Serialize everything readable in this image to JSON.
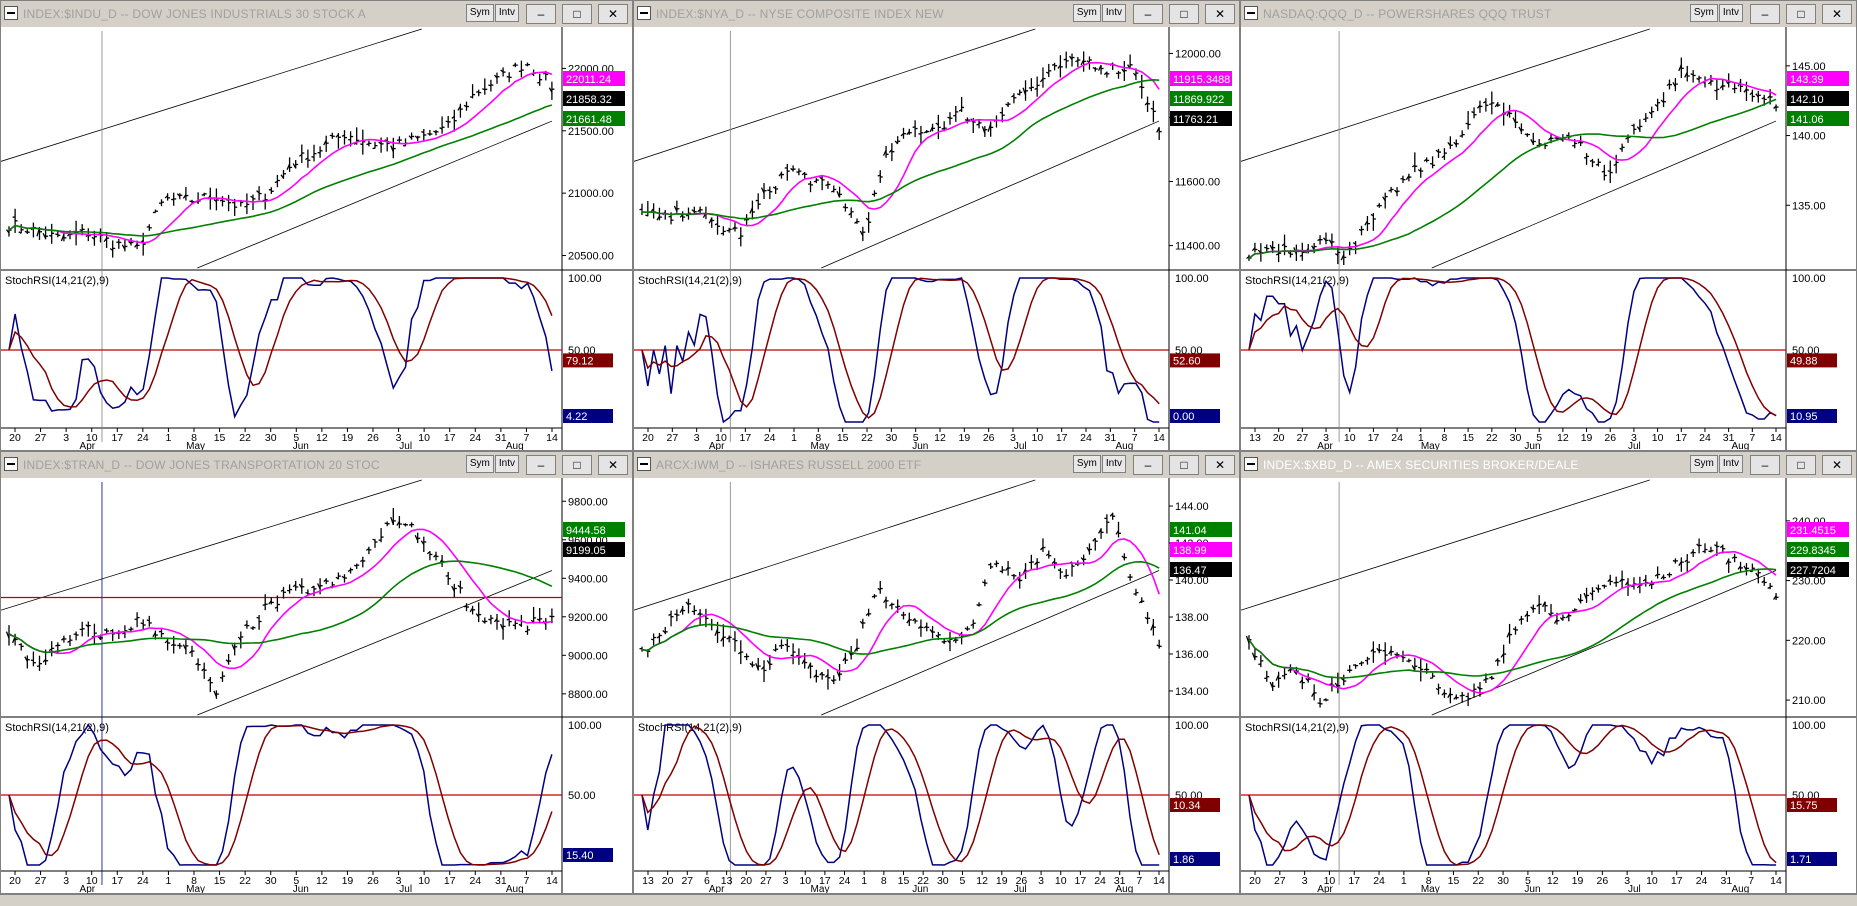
{
  "windows": [
    {
      "title": "INDEX:$INDU_D -- DOW JONES INDUSTRIALS 30 STOCK A",
      "active": false,
      "dates": [
        "20",
        "27",
        "3",
        "10",
        "17",
        "24",
        "1",
        "8",
        "15",
        "22",
        "30",
        "5",
        "12",
        "19",
        "26",
        "3",
        "10",
        "17",
        "24",
        "31",
        "7",
        "14"
      ],
      "months": [
        "Apr",
        "May",
        "Jun",
        "Jul",
        "Aug"
      ],
      "price_ticks": [
        "22000.00",
        "21500.00",
        "21000.00",
        "20500.00"
      ],
      "price_tick_values": [
        22000,
        21500,
        21000,
        20500
      ],
      "price_range": [
        20400,
        22300
      ],
      "badges": [
        {
          "value": "22011.24",
          "bg": "#ff00ff",
          "fg": "#ffffff"
        },
        {
          "value": "21858.32",
          "bg": "#000000",
          "fg": "#ffffff"
        },
        {
          "value": "21661.48",
          "bg": "#008000",
          "fg": "#ffffff"
        }
      ],
      "stoch_label": "StochRSI(14,21(2),9)",
      "stoch_ticks": [
        "100.00",
        "50.00"
      ],
      "stoch_badges": [
        {
          "value": "79.12",
          "bg": "#800000",
          "fg": "#ffffff"
        },
        {
          "value": "4.22",
          "bg": "#000080",
          "fg": "#ffffff"
        }
      ]
    },
    {
      "title": "INDEX:$NYA_D -- NYSE COMPOSITE INDEX NEW",
      "active": false,
      "dates": [
        "20",
        "27",
        "3",
        "10",
        "17",
        "24",
        "1",
        "8",
        "15",
        "22",
        "30",
        "5",
        "12",
        "19",
        "26",
        "3",
        "10",
        "17",
        "24",
        "31",
        "7",
        "14"
      ],
      "months": [
        "Apr",
        "May",
        "Jun",
        "Jul",
        "Aug"
      ],
      "price_ticks": [
        "12000.00",
        "11800.00",
        "11600.00",
        "11400.00"
      ],
      "price_tick_values": [
        12000,
        11800,
        11600,
        11400
      ],
      "price_range": [
        11330,
        12070
      ],
      "badges": [
        {
          "value": "11915.3488",
          "bg": "#ff00ff",
          "fg": "#ffffff"
        },
        {
          "value": "11869.922",
          "bg": "#008000",
          "fg": "#ffffff"
        },
        {
          "value": "11763.21",
          "bg": "#000000",
          "fg": "#ffffff"
        }
      ],
      "stoch_label": "StochRSI(14,21(2),9)",
      "stoch_ticks": [
        "100.00",
        "50.00"
      ],
      "stoch_badges": [
        {
          "value": "52.60",
          "bg": "#800000",
          "fg": "#ffffff"
        },
        {
          "value": "0.00",
          "bg": "#000080",
          "fg": "#ffffff"
        }
      ]
    },
    {
      "title": "NASDAQ:QQQ_D -- POWERSHARES QQQ TRUST",
      "active": false,
      "dates": [
        "13",
        "20",
        "27",
        "3",
        "10",
        "17",
        "24",
        "1",
        "8",
        "15",
        "22",
        "30",
        "5",
        "12",
        "19",
        "26",
        "3",
        "10",
        "17",
        "24",
        "31",
        "7",
        "14"
      ],
      "months": [
        "Apr",
        "May",
        "Jun",
        "Jul",
        "Aug"
      ],
      "price_ticks": [
        "145.00",
        "140.00",
        "135.00"
      ],
      "price_tick_values": [
        145,
        140,
        135
      ],
      "price_range": [
        130.5,
        147.5
      ],
      "badges": [
        {
          "value": "143.39",
          "bg": "#ff00ff",
          "fg": "#ffffff"
        },
        {
          "value": "142.10",
          "bg": "#000000",
          "fg": "#ffffff"
        },
        {
          "value": "141.06",
          "bg": "#008000",
          "fg": "#ffffff"
        }
      ],
      "stoch_label": "StochRSI(14,21(2),9)",
      "stoch_ticks": [
        "100.00",
        "50.00"
      ],
      "stoch_badges": [
        {
          "value": "49.88",
          "bg": "#800000",
          "fg": "#ffffff"
        },
        {
          "value": "10.95",
          "bg": "#000080",
          "fg": "#ffffff"
        }
      ]
    },
    {
      "title": "INDEX:$TRAN_D -- DOW JONES TRANSPORTATION 20 STOC",
      "active": false,
      "dates": [
        "20",
        "27",
        "3",
        "10",
        "17",
        "24",
        "1",
        "8",
        "15",
        "22",
        "30",
        "5",
        "12",
        "19",
        "26",
        "3",
        "10",
        "17",
        "24",
        "31",
        "7",
        "14"
      ],
      "months": [
        "Apr",
        "May",
        "Jun",
        "Jul",
        "Aug"
      ],
      "price_ticks": [
        "9800.00",
        "9600.00",
        "9400.00",
        "9200.00",
        "9000.00",
        "8800.00"
      ],
      "price_tick_values": [
        9800,
        9600,
        9400,
        9200,
        9000,
        8800
      ],
      "price_range": [
        8690,
        9900
      ],
      "badges": [
        {
          "value": "9444.58",
          "bg": "#008000",
          "fg": "#ffffff"
        },
        {
          "value": "9199.05",
          "bg": "#000000",
          "fg": "#ffffff"
        }
      ],
      "stoch_label": "StochRSI(14,21(2),9)",
      "stoch_ticks": [
        "100.00",
        "50.00"
      ],
      "stoch_badges": [
        {
          "value": "15.40",
          "bg": "#000080",
          "fg": "#ffffff"
        }
      ]
    },
    {
      "title": "ARCX:IWM_D -- ISHARES RUSSELL 2000 ETF",
      "active": false,
      "dates": [
        "13",
        "20",
        "27",
        "6",
        "13",
        "20",
        "27",
        "3",
        "10",
        "17",
        "24",
        "1",
        "8",
        "15",
        "22",
        "30",
        "5",
        "12",
        "19",
        "26",
        "3",
        "10",
        "17",
        "24",
        "31",
        "7",
        "14"
      ],
      "months": [
        "Apr",
        "May",
        "Jun",
        "Jul",
        "Aug"
      ],
      "price_ticks": [
        "144.00",
        "142.00",
        "140.00",
        "138.00",
        "136.00",
        "134.00"
      ],
      "price_tick_values": [
        144,
        142,
        140,
        138,
        136,
        134
      ],
      "price_range": [
        132.7,
        145.3
      ],
      "badges": [
        {
          "value": "141.04",
          "bg": "#008000",
          "fg": "#ffffff"
        },
        {
          "value": "138.99",
          "bg": "#ff00ff",
          "fg": "#ffffff"
        },
        {
          "value": "136.47",
          "bg": "#000000",
          "fg": "#ffffff"
        }
      ],
      "stoch_label": "StochRSI(14,21(2),9)",
      "stoch_ticks": [
        "100.00",
        "50.00"
      ],
      "stoch_badges": [
        {
          "value": "10.34",
          "bg": "#800000",
          "fg": "#ffffff"
        },
        {
          "value": "1.86",
          "bg": "#000080",
          "fg": "#ffffff"
        }
      ]
    },
    {
      "title": "INDEX:$XBD_D -- AMEX SECURITIES BROKER/DEALE",
      "active": true,
      "dates": [
        "20",
        "27",
        "3",
        "10",
        "17",
        "24",
        "1",
        "8",
        "15",
        "22",
        "30",
        "5",
        "12",
        "19",
        "26",
        "3",
        "10",
        "17",
        "24",
        "31",
        "7",
        "14"
      ],
      "months": [
        "Apr",
        "May",
        "Jun",
        "Jul",
        "Aug"
      ],
      "price_ticks": [
        "240.00",
        "230.00",
        "220.00",
        "210.00"
      ],
      "price_tick_values": [
        240,
        230,
        220,
        210
      ],
      "price_range": [
        207.5,
        246.5
      ],
      "badges": [
        {
          "value": "231.4515",
          "bg": "#ff00ff",
          "fg": "#ffffff"
        },
        {
          "value": "229.8345",
          "bg": "#008000",
          "fg": "#ffffff"
        },
        {
          "value": "227.7204",
          "bg": "#000000",
          "fg": "#ffffff"
        }
      ],
      "stoch_label": "StochRSI(14,21(2),9)",
      "stoch_ticks": [
        "100.00",
        "50.00"
      ],
      "stoch_badges": [
        {
          "value": "15.75",
          "bg": "#800000",
          "fg": "#ffffff"
        },
        {
          "value": "1.71",
          "bg": "#000080",
          "fg": "#ffffff"
        }
      ]
    }
  ],
  "buttons": {
    "sym": "Sym",
    "intv": "Intv"
  },
  "colors": {
    "fast_ma": "#ff00ff",
    "slow_ma": "#008000",
    "stoch_k": "#000080",
    "stoch_d": "#800000",
    "midline": "#c00000"
  },
  "chart_data": [
    {
      "type": "line",
      "title": "INDEX:$INDU_D -- DOW JONES INDUSTRIALS 30 STOCK A",
      "ylim": [
        20400,
        22300
      ],
      "series": [
        {
          "values": [
            20750,
            20700,
            20630,
            20690,
            20600,
            20550,
            20950,
            20940,
            20980,
            20880,
            21000,
            21250,
            21350,
            21480,
            21400,
            21380,
            21450,
            21530,
            21800,
            21920,
            22050,
            21860
          ]
        }
      ]
    },
    {
      "type": "line",
      "title": "INDEX:$NYA_D -- NYSE COMPOSITE INDEX NEW",
      "ylim": [
        11330,
        12070
      ],
      "series": [
        {
          "values": [
            11500,
            11480,
            11520,
            11460,
            11440,
            11560,
            11640,
            11600,
            11560,
            11440,
            11690,
            11760,
            11770,
            11820,
            11760,
            11860,
            11900,
            11960,
            11980,
            11950,
            11960,
            11763
          ]
        }
      ]
    },
    {
      "type": "line",
      "title": "NASDAQ:QQQ_D -- POWERSHARES QQQ TRUST",
      "ylim": [
        130.5,
        147.5
      ],
      "series": [
        {
          "values": [
            131.5,
            132.0,
            131.8,
            132.5,
            131.6,
            133.5,
            136.0,
            137.5,
            138.5,
            140.5,
            142.5,
            141.0,
            139.5,
            140.0,
            139.0,
            137.0,
            140.5,
            142.0,
            144.5,
            144.0,
            143.5,
            143.2,
            142.1
          ]
        }
      ]
    },
    {
      "type": "line",
      "title": "INDEX:$TRAN_D -- DOW JONES TRANSPORTATION 20 STOC",
      "ylim": [
        8690,
        9900
      ],
      "series": [
        {
          "values": [
            9100,
            8950,
            9050,
            9130,
            9100,
            9180,
            9100,
            9020,
            8800,
            9100,
            9250,
            9330,
            9350,
            9400,
            9550,
            9720,
            9600,
            9420,
            9220,
            9170,
            9150,
            9199
          ]
        }
      ]
    },
    {
      "type": "line",
      "title": "ARCX:IWM_D -- ISHARES RUSSELL 2000 ETF",
      "ylim": [
        132.7,
        145.3
      ],
      "series": [
        {
          "values": [
            136.0,
            137.5,
            139.0,
            137.5,
            136.5,
            135.0,
            136.5,
            135.5,
            134.5,
            136.0,
            139.5,
            138.5,
            137.5,
            136.5,
            137.5,
            141.0,
            140.0,
            141.5,
            140.5,
            141.5,
            143.5,
            139.5,
            136.5
          ]
        }
      ]
    },
    {
      "type": "line",
      "title": "INDEX:$XBD_D -- AMEX SECURITIES BROKER/DEALE",
      "ylim": [
        207.5,
        246.5
      ],
      "series": [
        {
          "values": [
            220.0,
            212.0,
            215.0,
            210.0,
            214.0,
            217.0,
            219.0,
            216.0,
            212.0,
            210.0,
            213.0,
            222.0,
            226.0,
            223.0,
            227.0,
            230.0,
            229.0,
            230.0,
            233.0,
            236.0,
            234.0,
            232.0,
            227.7
          ]
        }
      ]
    }
  ]
}
